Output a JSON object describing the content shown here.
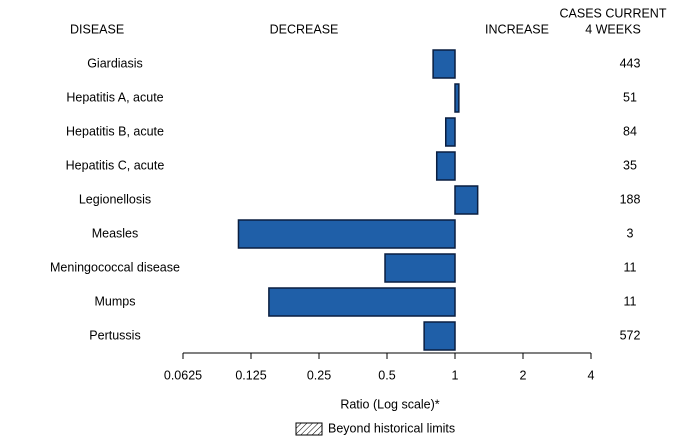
{
  "chart_data": {
    "type": "bar",
    "orientation": "horizontal",
    "log_scale": true,
    "base": 2,
    "headers": {
      "disease": "DISEASE",
      "decrease": "DECREASE",
      "increase": "INCREASE",
      "cases": [
        "CASES CURRENT",
        "4 WEEKS"
      ]
    },
    "categories": [
      "Giardiasis",
      "Hepatitis A, acute",
      "Hepatitis B, acute",
      "Hepatitis C, acute",
      "Legionellosis",
      "Measles",
      "Meningococcal disease",
      "Mumps",
      "Pertussis"
    ],
    "values": [
      0.8,
      1.04,
      0.91,
      0.83,
      1.26,
      0.11,
      0.49,
      0.15,
      0.73
    ],
    "cases": [
      443,
      51,
      84,
      35,
      188,
      3,
      11,
      11,
      572
    ],
    "color": "#1f5fa8",
    "edge_color": "#0a1e40",
    "xlim": [
      0.0625,
      4
    ],
    "xticks": [
      0.0625,
      0.125,
      0.25,
      0.5,
      1,
      2,
      4
    ],
    "xlabel": "Ratio (Log scale)*",
    "legend": {
      "label": "Beyond historical limits"
    }
  }
}
